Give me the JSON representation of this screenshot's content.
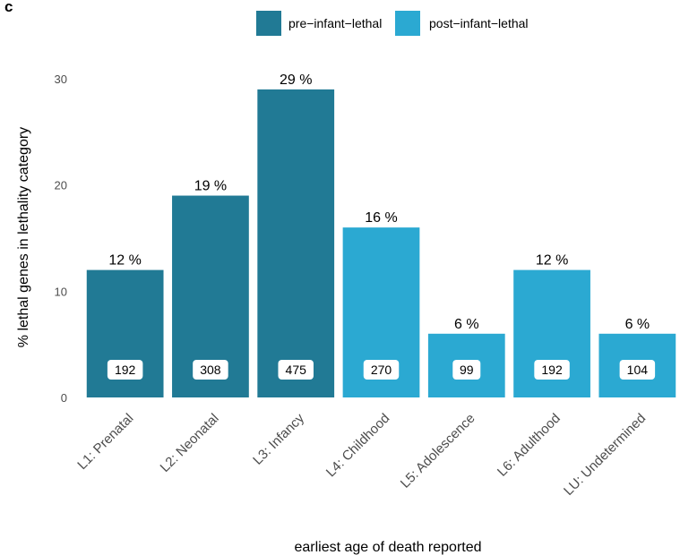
{
  "panel_label": "c",
  "colors": {
    "pre_infant_lethal": "#217a95",
    "post_infant_lethal": "#2ba9d2"
  },
  "chart_data": {
    "type": "bar",
    "categories": [
      "L1: Prenatal",
      "L2: Neonatal",
      "L3: Infancy",
      "L4: Childhood",
      "L5: Adolescence",
      "L6: Adulthood",
      "LU: Undetermined"
    ],
    "values": [
      12,
      19,
      29,
      16,
      6,
      12,
      6
    ],
    "data_labels": [
      "12 %",
      "19 %",
      "29 %",
      "16 %",
      "6 %",
      "12 %",
      "6 %"
    ],
    "counts": [
      "192",
      "308",
      "475",
      "270",
      "99",
      "192",
      "104"
    ],
    "groups": [
      "pre-infant-lethal",
      "pre-infant-lethal",
      "pre-infant-lethal",
      "post-infant-lethal",
      "post-infant-lethal",
      "post-infant-lethal",
      "post-infant-lethal"
    ],
    "legend": [
      {
        "name": "pre−infant−lethal",
        "key": "pre-infant-lethal",
        "color": "#217a95"
      },
      {
        "name": "post−infant−lethal",
        "key": "post-infant-lethal",
        "color": "#2ba9d2"
      }
    ],
    "legend_position": "top",
    "xlabel": "earliest age of death reported",
    "ylabel": "% lethal genes in lethality category",
    "ylim": [
      0,
      30
    ],
    "yticks": [
      "0",
      "10",
      "20",
      "30"
    ],
    "grid": false
  }
}
